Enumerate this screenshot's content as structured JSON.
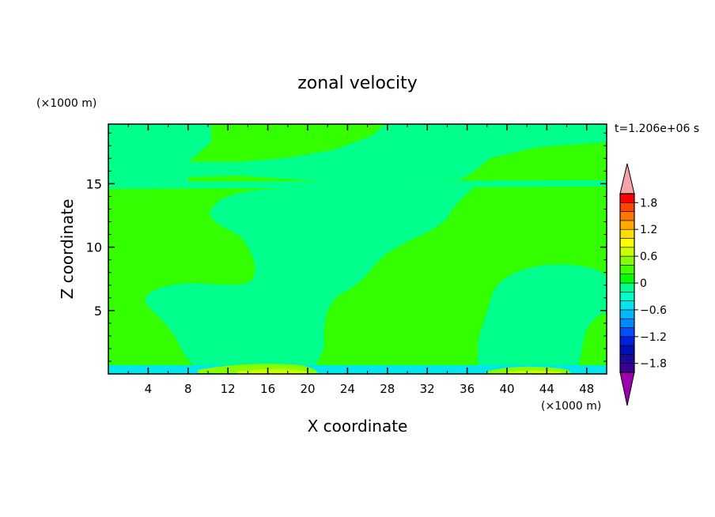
{
  "chart_data": {
    "type": "heatmap",
    "title": "zonal velocity",
    "xlabel": "X coordinate",
    "ylabel": "Z coordinate",
    "x_unit": "(×1000 m)",
    "y_unit": "(×1000 m)",
    "time_label": "t=1.206e+06 s",
    "xlim": [
      0,
      50
    ],
    "ylim": [
      0,
      19.7
    ],
    "xticks": [
      4,
      8,
      12,
      16,
      20,
      24,
      28,
      32,
      36,
      40,
      44,
      48
    ],
    "yticks": [
      5,
      10,
      15
    ],
    "colorbar": {
      "levels": [
        -2.0,
        -1.8,
        -1.6,
        -1.4,
        -1.2,
        -1.0,
        -0.8,
        -0.6,
        -0.4,
        -0.2,
        0.0,
        0.2,
        0.4,
        0.6,
        0.8,
        1.0,
        1.2,
        1.4,
        1.6,
        1.8,
        2.0
      ],
      "labels": [
        "1.8",
        "1.2",
        "0.6",
        "0",
        "−0.6",
        "−1.2",
        "−1.8"
      ],
      "label_values": [
        1.8,
        1.2,
        0.6,
        0.0,
        -0.6,
        -1.2,
        -1.8
      ],
      "colors": [
        "#3a0090",
        "#1a0a9c",
        "#0010b4",
        "#0020dc",
        "#0050ff",
        "#0088ff",
        "#00b8ff",
        "#00e6ee",
        "#00ffc8",
        "#00ff8c",
        "#00ff00",
        "#44ff00",
        "#88ff00",
        "#ccff00",
        "#ffff00",
        "#ffdd00",
        "#ffaa00",
        "#ff7700",
        "#ff4400",
        "#ff0000"
      ],
      "over_color": "#f4a3a8",
      "under_color": "#9b00b0"
    },
    "field_colors": {
      "near_zero_negative": "#00ff8c",
      "near_zero_positive": "#33ff00",
      "small_positive": "#ccff00",
      "small_negative": "#00e6ee"
    }
  }
}
